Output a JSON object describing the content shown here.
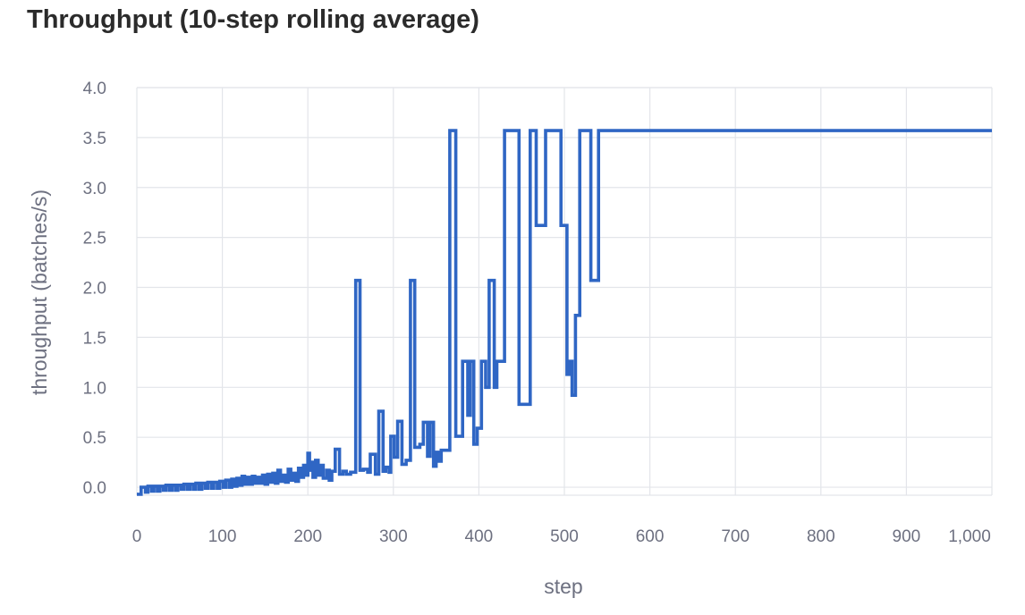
{
  "chart_data": {
    "type": "line",
    "title": "Throughput (10-step rolling average)",
    "xlabel": "step",
    "ylabel": "throughput (batches/s)",
    "xlim": [
      0,
      1000
    ],
    "ylim": [
      -0.08,
      4.0
    ],
    "x_ticks": [
      {
        "value": 0,
        "label": "0"
      },
      {
        "value": 100,
        "label": "100"
      },
      {
        "value": 200,
        "label": "200"
      },
      {
        "value": 300,
        "label": "300"
      },
      {
        "value": 400,
        "label": "400"
      },
      {
        "value": 500,
        "label": "500"
      },
      {
        "value": 600,
        "label": "600"
      },
      {
        "value": 700,
        "label": "700"
      },
      {
        "value": 800,
        "label": "800"
      },
      {
        "value": 900,
        "label": "900"
      },
      {
        "value": 1000,
        "label": "1,000"
      }
    ],
    "y_ticks": [
      {
        "value": 0,
        "label": "0.0"
      },
      {
        "value": 0.5,
        "label": "0.5"
      },
      {
        "value": 1.0,
        "label": "1.0"
      },
      {
        "value": 1.5,
        "label": "1.5"
      },
      {
        "value": 2.0,
        "label": "2.0"
      },
      {
        "value": 2.5,
        "label": "2.5"
      },
      {
        "value": 3.0,
        "label": "3.0"
      },
      {
        "value": 3.5,
        "label": "3.5"
      },
      {
        "value": 4.0,
        "label": "4.0"
      }
    ],
    "grid": true,
    "legend": "none",
    "line_style": "step",
    "series": [
      {
        "color": "#2f66c4",
        "points": [
          [
            0,
            -0.07
          ],
          [
            5,
            -0.07
          ],
          [
            5,
            0.0
          ],
          [
            10,
            0.0
          ],
          [
            10,
            -0.05
          ],
          [
            13,
            -0.05
          ],
          [
            13,
            0.01
          ],
          [
            17,
            0.01
          ],
          [
            17,
            -0.04
          ],
          [
            20,
            -0.04
          ],
          [
            20,
            0.01
          ],
          [
            24,
            0.01
          ],
          [
            24,
            -0.04
          ],
          [
            27,
            -0.04
          ],
          [
            27,
            0.01
          ],
          [
            31,
            0.01
          ],
          [
            31,
            -0.03
          ],
          [
            34,
            -0.03
          ],
          [
            34,
            0.02
          ],
          [
            38,
            0.02
          ],
          [
            38,
            -0.03
          ],
          [
            41,
            -0.03
          ],
          [
            41,
            0.02
          ],
          [
            45,
            0.02
          ],
          [
            45,
            -0.03
          ],
          [
            48,
            -0.03
          ],
          [
            48,
            0.02
          ],
          [
            52,
            0.02
          ],
          [
            52,
            -0.02
          ],
          [
            55,
            -0.02
          ],
          [
            55,
            0.03
          ],
          [
            59,
            0.03
          ],
          [
            59,
            -0.02
          ],
          [
            62,
            -0.02
          ],
          [
            62,
            0.03
          ],
          [
            66,
            0.03
          ],
          [
            66,
            -0.02
          ],
          [
            69,
            -0.02
          ],
          [
            69,
            0.04
          ],
          [
            73,
            0.04
          ],
          [
            73,
            -0.02
          ],
          [
            76,
            -0.02
          ],
          [
            76,
            0.04
          ],
          [
            80,
            0.04
          ],
          [
            80,
            -0.01
          ],
          [
            83,
            -0.01
          ],
          [
            83,
            0.05
          ],
          [
            87,
            0.05
          ],
          [
            87,
            -0.01
          ],
          [
            90,
            -0.01
          ],
          [
            90,
            0.05
          ],
          [
            94,
            0.05
          ],
          [
            94,
            -0.01
          ],
          [
            97,
            -0.01
          ],
          [
            97,
            0.06
          ],
          [
            101,
            0.06
          ],
          [
            101,
            0.0
          ],
          [
            104,
            0.0
          ],
          [
            104,
            0.07
          ],
          [
            108,
            0.07
          ],
          [
            108,
            0.0
          ],
          [
            111,
            0.0
          ],
          [
            111,
            0.08
          ],
          [
            114,
            0.08
          ],
          [
            114,
            0.01
          ],
          [
            117,
            0.01
          ],
          [
            117,
            0.09
          ],
          [
            120,
            0.09
          ],
          [
            120,
            0.02
          ],
          [
            123,
            0.02
          ],
          [
            123,
            0.11
          ],
          [
            126,
            0.11
          ],
          [
            126,
            0.03
          ],
          [
            129,
            0.03
          ],
          [
            129,
            0.1
          ],
          [
            132,
            0.1
          ],
          [
            132,
            0.03
          ],
          [
            135,
            0.03
          ],
          [
            135,
            0.11
          ],
          [
            138,
            0.11
          ],
          [
            138,
            0.04
          ],
          [
            141,
            0.04
          ],
          [
            141,
            0.1
          ],
          [
            144,
            0.1
          ],
          [
            144,
            0.04
          ],
          [
            147,
            0.04
          ],
          [
            147,
            0.12
          ],
          [
            150,
            0.12
          ],
          [
            150,
            0.03
          ],
          [
            153,
            0.03
          ],
          [
            153,
            0.13
          ],
          [
            156,
            0.13
          ],
          [
            156,
            0.05
          ],
          [
            159,
            0.05
          ],
          [
            159,
            0.14
          ],
          [
            162,
            0.14
          ],
          [
            162,
            0.04
          ],
          [
            165,
            0.04
          ],
          [
            165,
            0.17
          ],
          [
            168,
            0.17
          ],
          [
            168,
            0.06
          ],
          [
            171,
            0.06
          ],
          [
            171,
            0.12
          ],
          [
            174,
            0.12
          ],
          [
            174,
            0.05
          ],
          [
            177,
            0.05
          ],
          [
            177,
            0.18
          ],
          [
            180,
            0.18
          ],
          [
            180,
            0.07
          ],
          [
            183,
            0.07
          ],
          [
            183,
            0.14
          ],
          [
            186,
            0.14
          ],
          [
            186,
            0.06
          ],
          [
            189,
            0.06
          ],
          [
            189,
            0.19
          ],
          [
            192,
            0.19
          ],
          [
            192,
            0.1
          ],
          [
            195,
            0.1
          ],
          [
            195,
            0.22
          ],
          [
            198,
            0.22
          ],
          [
            198,
            0.12
          ],
          [
            200,
            0.12
          ],
          [
            200,
            0.34
          ],
          [
            202,
            0.34
          ],
          [
            202,
            0.17
          ],
          [
            204,
            0.17
          ],
          [
            204,
            0.25
          ],
          [
            206,
            0.25
          ],
          [
            206,
            0.1
          ],
          [
            209,
            0.1
          ],
          [
            209,
            0.27
          ],
          [
            212,
            0.27
          ],
          [
            212,
            0.12
          ],
          [
            215,
            0.12
          ],
          [
            215,
            0.22
          ],
          [
            218,
            0.22
          ],
          [
            218,
            0.09
          ],
          [
            222,
            0.09
          ],
          [
            222,
            0.17
          ],
          [
            225,
            0.17
          ],
          [
            225,
            0.07
          ],
          [
            228,
            0.07
          ],
          [
            228,
            0.16
          ],
          [
            232,
            0.16
          ],
          [
            232,
            0.38
          ],
          [
            237,
            0.38
          ],
          [
            237,
            0.13
          ],
          [
            241,
            0.13
          ],
          [
            241,
            0.16
          ],
          [
            245,
            0.16
          ],
          [
            245,
            0.13
          ],
          [
            250,
            0.13
          ],
          [
            250,
            0.15
          ],
          [
            256,
            0.15
          ],
          [
            256,
            2.07
          ],
          [
            261,
            2.07
          ],
          [
            261,
            0.17
          ],
          [
            265,
            0.17
          ],
          [
            265,
            0.18
          ],
          [
            270,
            0.18
          ],
          [
            270,
            0.15
          ],
          [
            273,
            0.15
          ],
          [
            273,
            0.33
          ],
          [
            279,
            0.33
          ],
          [
            279,
            0.13
          ],
          [
            283,
            0.13
          ],
          [
            283,
            0.76
          ],
          [
            288,
            0.76
          ],
          [
            288,
            0.16
          ],
          [
            291,
            0.16
          ],
          [
            291,
            0.2
          ],
          [
            295,
            0.2
          ],
          [
            295,
            0.15
          ],
          [
            297,
            0.15
          ],
          [
            297,
            0.51
          ],
          [
            301,
            0.51
          ],
          [
            301,
            0.3
          ],
          [
            305,
            0.3
          ],
          [
            305,
            0.66
          ],
          [
            310,
            0.66
          ],
          [
            310,
            0.23
          ],
          [
            315,
            0.23
          ],
          [
            315,
            0.27
          ],
          [
            320,
            0.27
          ],
          [
            320,
            2.07
          ],
          [
            325,
            2.07
          ],
          [
            325,
            0.4
          ],
          [
            331,
            0.4
          ],
          [
            331,
            0.43
          ],
          [
            335,
            0.43
          ],
          [
            335,
            0.65
          ],
          [
            340,
            0.65
          ],
          [
            340,
            0.31
          ],
          [
            343,
            0.31
          ],
          [
            343,
            0.65
          ],
          [
            347,
            0.65
          ],
          [
            347,
            0.21
          ],
          [
            350,
            0.21
          ],
          [
            350,
            0.35
          ],
          [
            353,
            0.35
          ],
          [
            353,
            0.26
          ],
          [
            356,
            0.26
          ],
          [
            356,
            0.37
          ],
          [
            366,
            0.37
          ],
          [
            366,
            3.57
          ],
          [
            373,
            3.57
          ],
          [
            373,
            0.51
          ],
          [
            381,
            0.51
          ],
          [
            381,
            1.26
          ],
          [
            387,
            1.26
          ],
          [
            387,
            0.72
          ],
          [
            390,
            0.72
          ],
          [
            390,
            1.26
          ],
          [
            394,
            1.26
          ],
          [
            394,
            0.43
          ],
          [
            398,
            0.43
          ],
          [
            398,
            0.59
          ],
          [
            403,
            0.59
          ],
          [
            403,
            1.26
          ],
          [
            408,
            1.26
          ],
          [
            408,
            1.0
          ],
          [
            412,
            1.0
          ],
          [
            412,
            2.07
          ],
          [
            418,
            2.07
          ],
          [
            418,
            1.0
          ],
          [
            421,
            1.0
          ],
          [
            421,
            1.26
          ],
          [
            430,
            1.26
          ],
          [
            430,
            3.57
          ],
          [
            447,
            3.57
          ],
          [
            447,
            0.83
          ],
          [
            460,
            0.83
          ],
          [
            460,
            3.57
          ],
          [
            467,
            3.57
          ],
          [
            467,
            2.62
          ],
          [
            478,
            2.62
          ],
          [
            478,
            3.57
          ],
          [
            496,
            3.57
          ],
          [
            496,
            2.62
          ],
          [
            503,
            2.62
          ],
          [
            503,
            1.13
          ],
          [
            506,
            1.13
          ],
          [
            506,
            1.26
          ],
          [
            509,
            1.26
          ],
          [
            509,
            0.92
          ],
          [
            513,
            0.92
          ],
          [
            513,
            1.72
          ],
          [
            518,
            1.72
          ],
          [
            518,
            3.57
          ],
          [
            531,
            3.57
          ],
          [
            531,
            2.07
          ],
          [
            540,
            2.07
          ],
          [
            540,
            3.57
          ],
          [
            1000,
            3.57
          ]
        ]
      }
    ]
  }
}
